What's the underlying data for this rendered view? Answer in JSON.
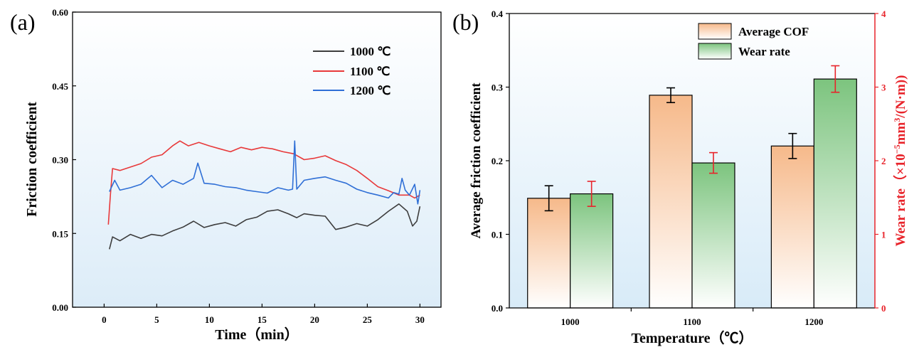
{
  "chart_data": [
    {
      "type": "line",
      "panel_label": "(a)",
      "xlabel": "Time（min）",
      "ylabel": "Friction coefficient",
      "xlim": [
        -3,
        32
      ],
      "ylim": [
        0,
        0.6
      ],
      "x_ticks": [
        "0",
        "5",
        "10",
        "15",
        "20",
        "25",
        "30"
      ],
      "y_ticks": [
        "0.00",
        "0.15",
        "0.30",
        "0.45",
        "0.60"
      ],
      "legend_position": "top-right",
      "background": "light-blue gradient",
      "series": [
        {
          "name": "1000 ℃",
          "color": "#3d3d3d",
          "points": [
            [
              0.5,
              0.118
            ],
            [
              0.8,
              0.143
            ],
            [
              1.5,
              0.135
            ],
            [
              2.5,
              0.148
            ],
            [
              3.5,
              0.14
            ],
            [
              4.5,
              0.148
            ],
            [
              5.5,
              0.145
            ],
            [
              6.5,
              0.155
            ],
            [
              7.5,
              0.163
            ],
            [
              8.5,
              0.175
            ],
            [
              9.5,
              0.162
            ],
            [
              10.5,
              0.168
            ],
            [
              11.5,
              0.172
            ],
            [
              12.5,
              0.165
            ],
            [
              13.5,
              0.178
            ],
            [
              14.5,
              0.183
            ],
            [
              15.5,
              0.195
            ],
            [
              16.5,
              0.198
            ],
            [
              17.5,
              0.19
            ],
            [
              18.3,
              0.182
            ],
            [
              19.0,
              0.19
            ],
            [
              20.0,
              0.187
            ],
            [
              21.0,
              0.185
            ],
            [
              22.0,
              0.158
            ],
            [
              23.0,
              0.163
            ],
            [
              24.0,
              0.17
            ],
            [
              25.0,
              0.165
            ],
            [
              26.0,
              0.178
            ],
            [
              27.0,
              0.195
            ],
            [
              28.0,
              0.21
            ],
            [
              28.8,
              0.195
            ],
            [
              29.3,
              0.165
            ],
            [
              29.7,
              0.175
            ],
            [
              30.0,
              0.205
            ]
          ]
        },
        {
          "name": "1100 ℃",
          "color": "#e8393a",
          "points": [
            [
              0.4,
              0.168
            ],
            [
              0.6,
              0.23
            ],
            [
              0.8,
              0.282
            ],
            [
              1.5,
              0.278
            ],
            [
              2.5,
              0.285
            ],
            [
              3.5,
              0.292
            ],
            [
              4.5,
              0.305
            ],
            [
              5.5,
              0.31
            ],
            [
              6.5,
              0.328
            ],
            [
              7.2,
              0.338
            ],
            [
              8.0,
              0.328
            ],
            [
              9.0,
              0.335
            ],
            [
              10.0,
              0.328
            ],
            [
              11.0,
              0.322
            ],
            [
              12.0,
              0.316
            ],
            [
              13.0,
              0.325
            ],
            [
              14.0,
              0.32
            ],
            [
              15.0,
              0.325
            ],
            [
              16.0,
              0.322
            ],
            [
              17.0,
              0.316
            ],
            [
              18.0,
              0.312
            ],
            [
              19.0,
              0.3
            ],
            [
              20.0,
              0.303
            ],
            [
              21.0,
              0.308
            ],
            [
              22.0,
              0.298
            ],
            [
              23.0,
              0.29
            ],
            [
              24.0,
              0.278
            ],
            [
              25.0,
              0.262
            ],
            [
              26.0,
              0.245
            ],
            [
              27.0,
              0.237
            ],
            [
              28.0,
              0.228
            ],
            [
              29.0,
              0.228
            ],
            [
              29.5,
              0.222
            ],
            [
              30.0,
              0.228
            ]
          ]
        },
        {
          "name": "1200 ℃",
          "color": "#2f6fd6",
          "points": [
            [
              0.5,
              0.235
            ],
            [
              1.0,
              0.258
            ],
            [
              1.5,
              0.238
            ],
            [
              2.5,
              0.243
            ],
            [
              3.5,
              0.25
            ],
            [
              4.5,
              0.268
            ],
            [
              5.5,
              0.243
            ],
            [
              6.5,
              0.258
            ],
            [
              7.5,
              0.25
            ],
            [
              8.5,
              0.262
            ],
            [
              8.9,
              0.293
            ],
            [
              9.5,
              0.252
            ],
            [
              10.5,
              0.25
            ],
            [
              11.5,
              0.245
            ],
            [
              12.5,
              0.243
            ],
            [
              13.5,
              0.238
            ],
            [
              14.5,
              0.235
            ],
            [
              15.5,
              0.232
            ],
            [
              16.5,
              0.243
            ],
            [
              17.5,
              0.238
            ],
            [
              17.9,
              0.24
            ],
            [
              18.1,
              0.338
            ],
            [
              18.3,
              0.24
            ],
            [
              19.0,
              0.258
            ],
            [
              20.0,
              0.262
            ],
            [
              21.0,
              0.265
            ],
            [
              22.0,
              0.258
            ],
            [
              23.0,
              0.252
            ],
            [
              24.0,
              0.24
            ],
            [
              25.0,
              0.233
            ],
            [
              26.0,
              0.228
            ],
            [
              27.0,
              0.222
            ],
            [
              27.5,
              0.233
            ],
            [
              28.0,
              0.23
            ],
            [
              28.3,
              0.262
            ],
            [
              28.6,
              0.238
            ],
            [
              29.0,
              0.228
            ],
            [
              29.5,
              0.25
            ],
            [
              29.8,
              0.21
            ],
            [
              30.0,
              0.238
            ]
          ]
        }
      ]
    },
    {
      "type": "bar",
      "panel_label": "(b)",
      "xlabel": "Temperature（℃）",
      "ylabel": "Average friction coefficient",
      "y2label_main": "Wear rate（×10",
      "y2label_exp1": "−5",
      "y2label_mid": "mm",
      "y2label_exp2": "3",
      "y2label_end": "/(N·m))",
      "categories": [
        "1000",
        "1100",
        "1200"
      ],
      "ylim": [
        0,
        0.4
      ],
      "y2lim": [
        0,
        4
      ],
      "y_ticks": [
        "0.0",
        "0.1",
        "0.2",
        "0.3",
        "0.4"
      ],
      "y2_ticks": [
        "0",
        "1",
        "2",
        "3",
        "4"
      ],
      "legend_position": "top-center",
      "series": [
        {
          "name": "Average COF",
          "axis": "left",
          "color": "#f6b98a",
          "values": [
            0.149,
            0.289,
            0.22
          ],
          "errors": [
            0.017,
            0.01,
            0.017
          ],
          "error_color": "#000000"
        },
        {
          "name": "Wear rate",
          "axis": "right",
          "color": "#7cc47e",
          "values": [
            1.55,
            1.97,
            3.11
          ],
          "errors": [
            0.17,
            0.14,
            0.18
          ],
          "error_color": "#e8232a"
        }
      ]
    }
  ]
}
